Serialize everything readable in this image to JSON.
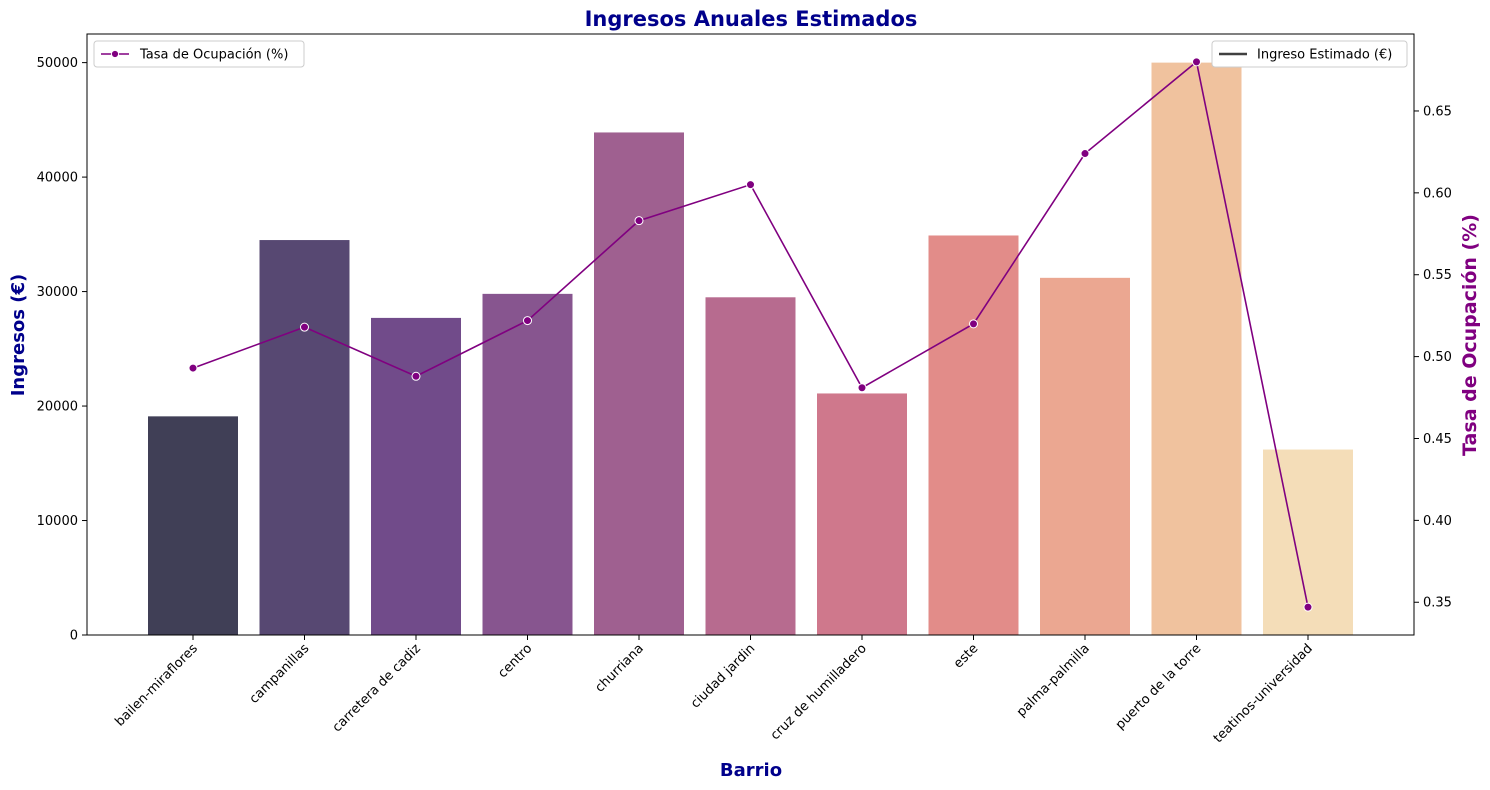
{
  "chart_data": {
    "type": "bar",
    "title": "Ingresos Anuales Estimados",
    "xlabel": "Barrio",
    "ylabel": "Ingresos (€)",
    "y2label": "Tasa de Ocupación (%)",
    "categories": [
      "bailen-miraflores",
      "campanillas",
      "carretera de cadiz",
      "centro",
      "churriana",
      "ciudad jardin",
      "cruz de humilladero",
      "este",
      "palma-palmilla",
      "puerto de la torre",
      "teatinos-universidad"
    ],
    "series": [
      {
        "name": "Ingreso Estimado (€)",
        "axis": "left",
        "type": "bar",
        "values": [
          19100,
          34500,
          27700,
          29800,
          43900,
          29500,
          21100,
          34900,
          31200,
          50000,
          16200
        ],
        "colors": [
          "#403F56",
          "#574872",
          "#714B8A",
          "#87558F",
          "#9F6090",
          "#B76B8F",
          "#CF788C",
          "#E28C89",
          "#EBA791",
          "#F0C29E",
          "#F4DDB8"
        ]
      },
      {
        "name": "Tasa de Ocupación (%)",
        "axis": "right",
        "type": "line",
        "color": "#800080",
        "values": [
          0.493,
          0.518,
          0.488,
          0.522,
          0.583,
          0.605,
          0.481,
          0.52,
          0.624,
          0.68,
          0.347
        ]
      }
    ],
    "ylim": [
      0,
      52500
    ],
    "y_ticks": [
      0,
      10000,
      20000,
      30000,
      40000,
      50000
    ],
    "y2lim": [
      0.33,
      0.697
    ],
    "y2_ticks": [
      "0.35",
      "0.40",
      "0.45",
      "0.50",
      "0.55",
      "0.60",
      "0.65"
    ],
    "legend_left": "top-left",
    "legend_right": "top-right",
    "grid": false,
    "colors": {
      "title": "#00008B",
      "ylabel": "#00008B",
      "y2label": "#800080",
      "xlabel": "#00008B"
    }
  }
}
